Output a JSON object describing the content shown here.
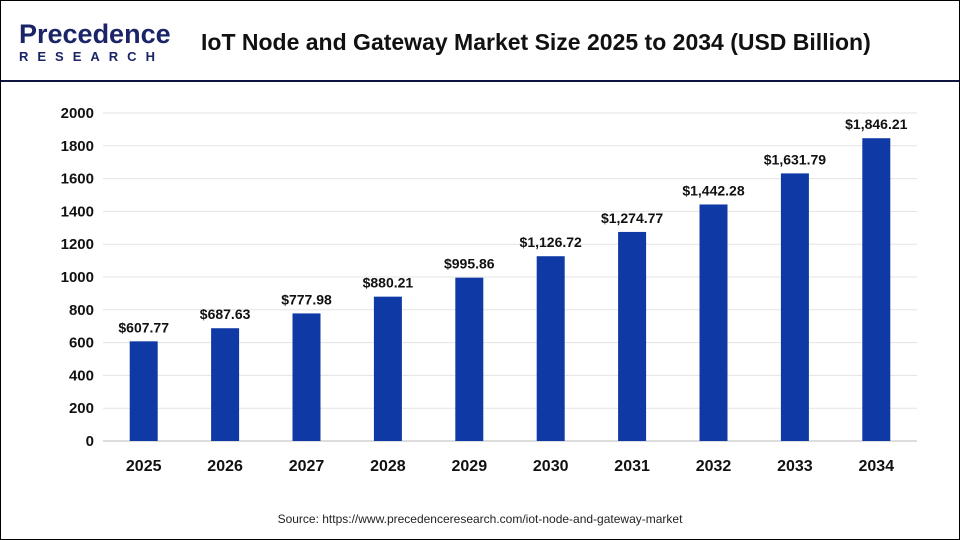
{
  "header": {
    "logo_line1": "Precedence",
    "logo_line2": "RESEARCH",
    "title": "IoT Node and Gateway Market Size 2025 to 2034 (USD Billion)"
  },
  "source": "Source: https://www.precedenceresearch.com/iot-node-and-gateway-market",
  "chart_data": {
    "type": "bar",
    "title": "IoT Node and Gateway Market Size 2025 to 2034 (USD Billion)",
    "categories": [
      "2025",
      "2026",
      "2027",
      "2028",
      "2029",
      "2030",
      "2031",
      "2032",
      "2033",
      "2034"
    ],
    "values": [
      607.77,
      687.63,
      777.98,
      880.21,
      995.86,
      1126.72,
      1274.77,
      1442.28,
      1631.79,
      1846.21
    ],
    "data_labels": [
      "$607.77",
      "$687.63",
      "$777.98",
      "$880.21",
      "$995.86",
      "$1,126.72",
      "$1,274.77",
      "$1,442.28",
      "$1,631.79",
      "$1,846.21"
    ],
    "ylim": [
      0,
      2000
    ],
    "yticks": [
      "0",
      "200",
      "400",
      "600",
      "800",
      "1000",
      "1200",
      "1400",
      "1600",
      "1800",
      "2000"
    ],
    "grid": true,
    "bar_color": "#0f3aa6",
    "xlabel": "",
    "ylabel": ""
  }
}
